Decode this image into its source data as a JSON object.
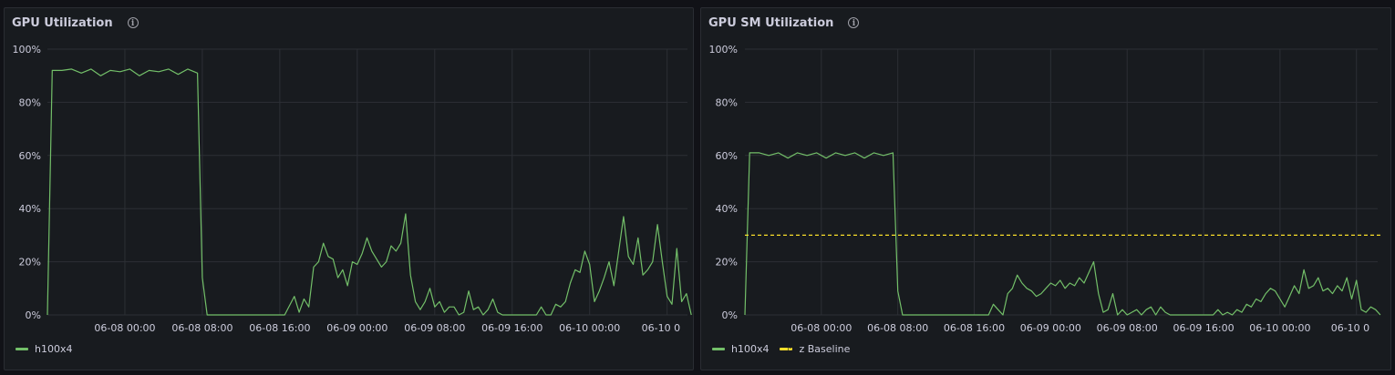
{
  "panels": [
    {
      "title": "GPU Utilization"
    },
    {
      "title": "GPU SM Utilization"
    }
  ],
  "colors": {
    "series": "#73bf69",
    "baseline": "#fade2a",
    "grid": "#2c2f35",
    "tick": "#ccccdc"
  },
  "chart_data": [
    {
      "type": "line",
      "title": "GPU Utilization",
      "x_ticks": [
        "06-08 00:00",
        "06-08 08:00",
        "06-08 16:00",
        "06-09 00:00",
        "06-09 08:00",
        "06-09 16:00",
        "06-10 00:00",
        "06-10 0"
      ],
      "x_range_hours": [
        -8,
        58.2
      ],
      "ylim": [
        0,
        100
      ],
      "y_ticks": [
        "0%",
        "20%",
        "40%",
        "60%",
        "80%",
        "100%"
      ],
      "legend": "bottom-left",
      "series": [
        {
          "name": "h100x4",
          "color": "#73bf69",
          "style": "solid",
          "points": [
            [
              -8,
              0
            ],
            [
              -7.5,
              92
            ],
            [
              -6.5,
              92
            ],
            [
              -5.5,
              92.5
            ],
            [
              -4.5,
              91
            ],
            [
              -3.5,
              92.5
            ],
            [
              -2.5,
              90
            ],
            [
              -1.5,
              92
            ],
            [
              -0.5,
              91.5
            ],
            [
              0.5,
              92.5
            ],
            [
              1.5,
              90
            ],
            [
              2.5,
              92
            ],
            [
              3.5,
              91.5
            ],
            [
              4.5,
              92.5
            ],
            [
              5.5,
              90.5
            ],
            [
              6.5,
              92.5
            ],
            [
              7.5,
              91
            ],
            [
              8,
              14
            ],
            [
              8.5,
              0
            ],
            [
              16.5,
              0
            ],
            [
              17.5,
              7
            ],
            [
              18,
              1
            ],
            [
              18.5,
              6
            ],
            [
              19,
              3
            ],
            [
              19.5,
              18
            ],
            [
              20,
              20
            ],
            [
              20.5,
              27
            ],
            [
              21,
              22
            ],
            [
              21.5,
              21
            ],
            [
              22,
              14
            ],
            [
              22.5,
              17
            ],
            [
              23,
              11
            ],
            [
              23.5,
              20
            ],
            [
              24,
              19
            ],
            [
              24.5,
              23
            ],
            [
              25,
              29
            ],
            [
              25.5,
              24
            ],
            [
              26,
              21
            ],
            [
              26.5,
              18
            ],
            [
              27,
              20
            ],
            [
              27.5,
              26
            ],
            [
              28,
              24
            ],
            [
              28.5,
              27
            ],
            [
              29,
              38
            ],
            [
              29.5,
              15
            ],
            [
              30,
              5
            ],
            [
              30.5,
              2
            ],
            [
              31,
              5
            ],
            [
              31.5,
              10
            ],
            [
              32,
              3
            ],
            [
              32.5,
              5
            ],
            [
              33,
              1
            ],
            [
              33.5,
              3
            ],
            [
              34,
              3
            ],
            [
              34.5,
              0
            ],
            [
              35,
              1
            ],
            [
              35.5,
              9
            ],
            [
              36,
              2
            ],
            [
              36.5,
              3
            ],
            [
              37,
              0
            ],
            [
              37.5,
              2
            ],
            [
              38,
              6
            ],
            [
              38.5,
              1
            ],
            [
              39,
              0
            ],
            [
              42.5,
              0
            ],
            [
              43,
              3
            ],
            [
              43.5,
              0
            ],
            [
              44,
              0
            ],
            [
              44.5,
              4
            ],
            [
              45,
              3
            ],
            [
              45.5,
              5
            ],
            [
              46,
              12
            ],
            [
              46.5,
              17
            ],
            [
              47,
              16
            ],
            [
              47.5,
              24
            ],
            [
              48,
              19
            ],
            [
              48.5,
              5
            ],
            [
              49,
              9
            ],
            [
              49.5,
              14
            ],
            [
              50,
              20
            ],
            [
              50.5,
              11
            ],
            [
              51,
              24
            ],
            [
              51.5,
              37
            ],
            [
              52,
              22
            ],
            [
              52.5,
              19
            ],
            [
              53,
              29
            ],
            [
              53.5,
              15
            ],
            [
              54,
              17
            ],
            [
              54.5,
              20
            ],
            [
              55,
              34
            ],
            [
              55.5,
              20
            ],
            [
              56,
              7
            ],
            [
              56.5,
              4
            ],
            [
              57,
              25
            ],
            [
              57.5,
              5
            ],
            [
              58,
              8
            ],
            [
              58.5,
              0
            ]
          ]
        }
      ]
    },
    {
      "type": "line",
      "title": "GPU SM Utilization",
      "x_ticks": [
        "06-08 00:00",
        "06-08 08:00",
        "06-08 16:00",
        "06-09 00:00",
        "06-09 08:00",
        "06-09 16:00",
        "06-10 00:00",
        "06-10 0"
      ],
      "x_range_hours": [
        -8,
        58.2
      ],
      "ylim": [
        0,
        100
      ],
      "y_ticks": [
        "0%",
        "20%",
        "40%",
        "60%",
        "80%",
        "100%"
      ],
      "legend": "bottom-left",
      "series": [
        {
          "name": "h100x4",
          "color": "#73bf69",
          "style": "solid",
          "points": [
            [
              -8,
              0
            ],
            [
              -7.5,
              61
            ],
            [
              -6.5,
              61
            ],
            [
              -5.5,
              60
            ],
            [
              -4.5,
              61
            ],
            [
              -3.5,
              59
            ],
            [
              -2.5,
              61
            ],
            [
              -1.5,
              60
            ],
            [
              -0.5,
              61
            ],
            [
              0.5,
              59
            ],
            [
              1.5,
              61
            ],
            [
              2.5,
              60
            ],
            [
              3.5,
              61
            ],
            [
              4.5,
              59
            ],
            [
              5.5,
              61
            ],
            [
              6.5,
              60
            ],
            [
              7.5,
              61
            ],
            [
              8,
              9
            ],
            [
              8.5,
              0
            ],
            [
              17.5,
              0
            ],
            [
              18,
              4
            ],
            [
              18.5,
              2
            ],
            [
              19,
              0
            ],
            [
              19.5,
              8
            ],
            [
              20,
              10
            ],
            [
              20.5,
              15
            ],
            [
              21,
              12
            ],
            [
              21.5,
              10
            ],
            [
              22,
              9
            ],
            [
              22.5,
              7
            ],
            [
              23,
              8
            ],
            [
              23.5,
              10
            ],
            [
              24,
              12
            ],
            [
              24.5,
              11
            ],
            [
              25,
              13
            ],
            [
              25.5,
              10
            ],
            [
              26,
              12
            ],
            [
              26.5,
              11
            ],
            [
              27,
              14
            ],
            [
              27.5,
              12
            ],
            [
              28,
              16
            ],
            [
              28.5,
              20
            ],
            [
              29,
              8
            ],
            [
              29.5,
              1
            ],
            [
              30,
              2
            ],
            [
              30.5,
              8
            ],
            [
              31,
              0
            ],
            [
              31.5,
              2
            ],
            [
              32,
              0
            ],
            [
              32.5,
              1
            ],
            [
              33,
              2
            ],
            [
              33.5,
              0
            ],
            [
              34,
              2
            ],
            [
              34.5,
              3
            ],
            [
              35,
              0
            ],
            [
              35.5,
              3
            ],
            [
              36,
              1
            ],
            [
              36.5,
              0
            ],
            [
              41,
              0
            ],
            [
              41.5,
              2
            ],
            [
              42,
              0
            ],
            [
              42.5,
              1
            ],
            [
              43,
              0
            ],
            [
              43.5,
              2
            ],
            [
              44,
              1
            ],
            [
              44.5,
              4
            ],
            [
              45,
              3
            ],
            [
              45.5,
              6
            ],
            [
              46,
              5
            ],
            [
              46.5,
              8
            ],
            [
              47,
              10
            ],
            [
              47.5,
              9
            ],
            [
              48,
              6
            ],
            [
              48.5,
              3
            ],
            [
              49,
              7
            ],
            [
              49.5,
              11
            ],
            [
              50,
              8
            ],
            [
              50.5,
              17
            ],
            [
              51,
              10
            ],
            [
              51.5,
              11
            ],
            [
              52,
              14
            ],
            [
              52.5,
              9
            ],
            [
              53,
              10
            ],
            [
              53.5,
              8
            ],
            [
              54,
              11
            ],
            [
              54.5,
              9
            ],
            [
              55,
              14
            ],
            [
              55.5,
              6
            ],
            [
              56,
              13
            ],
            [
              56.5,
              2
            ],
            [
              57,
              1
            ],
            [
              57.5,
              3
            ],
            [
              58,
              2
            ],
            [
              58.5,
              0
            ]
          ]
        },
        {
          "name": "z Baseline",
          "color": "#fade2a",
          "style": "dashed",
          "points": [
            [
              -8,
              30
            ],
            [
              58.5,
              30
            ]
          ]
        }
      ]
    }
  ]
}
